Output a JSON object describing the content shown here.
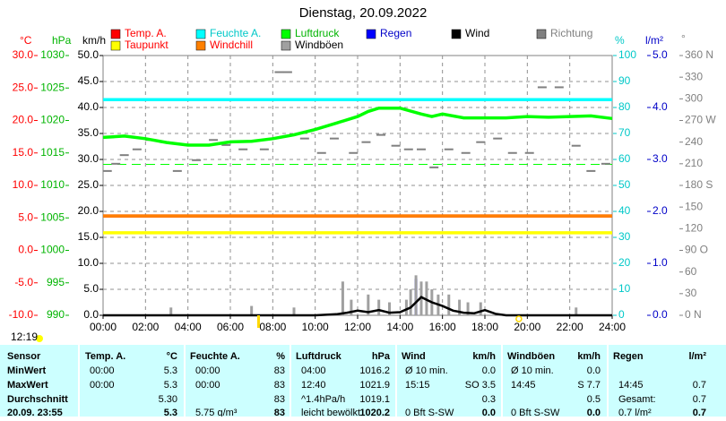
{
  "chart_data": {
    "type": "line",
    "title": "Dienstag, 20.09.2022",
    "xlim": [
      0,
      24
    ],
    "xticks": [
      {
        "value": 0,
        "label": "00:00"
      },
      {
        "value": 2,
        "label": "02:00"
      },
      {
        "value": 4,
        "label": "04:00"
      },
      {
        "value": 6,
        "label": "06:00"
      },
      {
        "value": 8,
        "label": "08:00"
      },
      {
        "value": 10,
        "label": "10:00"
      },
      {
        "value": 12,
        "label": "12:00"
      },
      {
        "value": 14,
        "label": "14:00"
      },
      {
        "value": 16,
        "label": "16:00"
      },
      {
        "value": 18,
        "label": "18:00"
      },
      {
        "value": 20,
        "label": "20:00"
      },
      {
        "value": 22,
        "label": "22:00"
      },
      {
        "value": 24,
        "label": "24:00"
      }
    ],
    "grid": true,
    "grid_axis": 2,
    "axes": [
      {
        "label": "°C",
        "color": "#ff0000",
        "lim": [
          -10,
          30
        ],
        "ticks": [
          {
            "value": -10,
            "label": "-10.0"
          },
          {
            "value": -5,
            "label": "-5.0"
          },
          {
            "value": 0,
            "label": "0.0"
          },
          {
            "value": 5,
            "label": "5.0"
          },
          {
            "value": 10,
            "label": "10.0"
          },
          {
            "value": 15,
            "label": "15.0"
          },
          {
            "value": 20,
            "label": "20.0"
          },
          {
            "value": 25,
            "label": "25.0"
          },
          {
            "value": 30,
            "label": "30.0"
          }
        ]
      },
      {
        "label": "hPa",
        "color": "#00b400",
        "lim": [
          990,
          1030
        ],
        "ticks": [
          990,
          995,
          1000,
          1005,
          1010,
          1015,
          1020,
          1025,
          1030
        ]
      },
      {
        "label": "km/h",
        "color": "#000000",
        "lim": [
          0,
          50
        ],
        "ticks": [
          {
            "value": 0,
            "label": "0.0"
          },
          {
            "value": 5,
            "label": "5.0"
          },
          {
            "value": 10,
            "label": "10.0"
          },
          {
            "value": 15,
            "label": "15.0"
          },
          {
            "value": 20,
            "label": "20.0"
          },
          {
            "value": 25,
            "label": "25.0"
          },
          {
            "value": 30,
            "label": "30.0"
          },
          {
            "value": 35,
            "label": "35.0"
          },
          {
            "value": 40,
            "label": "40.0"
          },
          {
            "value": 45,
            "label": "45.0"
          },
          {
            "value": 50,
            "label": "50.0"
          }
        ]
      },
      {
        "label": "%",
        "color": "#00c8c8",
        "lim": [
          0,
          100
        ],
        "ticks": [
          0,
          10,
          20,
          30,
          40,
          50,
          60,
          70,
          80,
          90,
          100
        ]
      },
      {
        "label": "l/m²",
        "color": "#0000c8",
        "lim": [
          0,
          5
        ],
        "ticks": [
          {
            "value": 0,
            "label": "0.0"
          },
          {
            "value": 1,
            "label": "1.0"
          },
          {
            "value": 2,
            "label": "2.0"
          },
          {
            "value": 3,
            "label": "3.0"
          },
          {
            "value": 4,
            "label": "4.0"
          },
          {
            "value": 5,
            "label": "5.0"
          }
        ]
      },
      {
        "label": "°",
        "color": "#808080",
        "lim": [
          0,
          360
        ],
        "ticks": [
          {
            "value": 0,
            "label": "0 N"
          },
          {
            "value": 30,
            "label": "30"
          },
          {
            "value": 60,
            "label": "60"
          },
          {
            "value": 90,
            "label": "90 O"
          },
          {
            "value": 120,
            "label": "120"
          },
          {
            "value": 150,
            "label": "150"
          },
          {
            "value": 180,
            "label": "180 S"
          },
          {
            "value": 210,
            "label": "210"
          },
          {
            "value": 240,
            "label": "240"
          },
          {
            "value": 270,
            "label": "270 W"
          },
          {
            "value": 300,
            "label": "300"
          },
          {
            "value": 330,
            "label": "330"
          },
          {
            "value": 360,
            "label": "360 N"
          }
        ]
      }
    ],
    "series": [
      {
        "name": "Temp. A.",
        "color": "#ff0000",
        "legend_color": "#ff0000",
        "style": "line",
        "axis": 0,
        "x": [
          0,
          24
        ],
        "values": [
          5.3,
          5.3
        ]
      },
      {
        "name": "Feuchte A.",
        "color": "#00ffff",
        "legend_color": "#00c8c8",
        "style": "line",
        "axis": 3,
        "x": [
          0,
          24
        ],
        "values": [
          83,
          83
        ]
      },
      {
        "name": "Luftdruck",
        "color": "#00ff00",
        "legend_color": "#00b400",
        "style": "line",
        "axis": 1,
        "x": [
          0,
          1,
          2,
          3,
          4,
          5,
          6,
          7,
          8,
          9,
          10,
          11,
          12,
          12.5,
          13,
          14,
          15,
          15.5,
          16,
          17,
          18,
          19,
          20,
          21,
          22,
          23,
          24
        ],
        "values": [
          1017.4,
          1017.6,
          1017.2,
          1016.6,
          1016.2,
          1016.2,
          1016.7,
          1016.8,
          1017.2,
          1017.8,
          1018.6,
          1019.6,
          1020.6,
          1021.4,
          1021.9,
          1021.9,
          1021.0,
          1020.6,
          1021.0,
          1020.4,
          1020.4,
          1020.4,
          1020.6,
          1020.5,
          1020.6,
          1020.7,
          1020.3
        ]
      },
      {
        "name": "Regen",
        "color": "#0000ff",
        "legend_color": "#0000c8",
        "style": "bar",
        "axis": 4,
        "x": [
          14.75
        ],
        "values": [
          0.7
        ]
      },
      {
        "name": "Wind",
        "color": "#000000",
        "legend_color": "#000000",
        "style": "line",
        "axis": 2,
        "x": [
          0,
          2,
          4,
          6,
          8,
          10,
          11,
          11.5,
          12,
          12.5,
          13,
          13.5,
          14,
          14.5,
          14.75,
          15,
          15.25,
          15.5,
          16,
          16.5,
          17,
          17.5,
          18,
          18.5,
          19,
          20,
          22,
          24
        ],
        "values": [
          0,
          0,
          0,
          0,
          0,
          0,
          0.2,
          0.5,
          0.9,
          0.6,
          1.0,
          0.5,
          0.6,
          1.5,
          2.5,
          3.5,
          3.0,
          2.5,
          1.8,
          0.9,
          0.5,
          0.4,
          1.0,
          0.3,
          0,
          0,
          0,
          0
        ]
      },
      {
        "name": "Richtung",
        "color": "#808080",
        "legend_color": "#808080",
        "style": "dash",
        "axis": 5,
        "x": [
          0.2,
          0.6,
          1.0,
          1.6,
          2.2,
          2.9,
          3.5,
          4.4,
          5.2,
          5.8,
          6.6,
          7.6,
          8.3,
          8.7,
          9.5,
          10.3,
          10.9,
          11.8,
          12.4,
          13.1,
          13.8,
          14.4,
          15.0,
          15.6,
          16.3,
          17.1,
          17.8,
          18.6,
          19.3,
          20.1,
          20.7,
          21.5,
          22.3,
          23.0,
          23.7
        ],
        "values": [
          200,
          210,
          222,
          230,
          243,
          240,
          200,
          215,
          243,
          236,
          230,
          230,
          337,
          337,
          245,
          225,
          245,
          225,
          240,
          250,
          235,
          230,
          230,
          205,
          230,
          225,
          240,
          245,
          225,
          225,
          316,
          316,
          235,
          200,
          210
        ]
      },
      {
        "name": "Taupunkt",
        "color": "#ffff00",
        "legend_color": "#ff0000",
        "style": "line",
        "axis": 0,
        "x": [
          0,
          24
        ],
        "values": [
          2.7,
          2.7
        ]
      },
      {
        "name": "Windchill",
        "color": "#ff8000",
        "legend_color": "#ff0000",
        "style": "line",
        "axis": 0,
        "x": [
          0,
          24
        ],
        "values": [
          5.3,
          5.3
        ]
      },
      {
        "name": "Windböen",
        "color": "#a0a0a0",
        "legend_color": "#000000",
        "style": "bar",
        "axis": 2,
        "x": [
          3.2,
          7.0,
          9.0,
          11.3,
          11.7,
          12.5,
          13.0,
          13.5,
          14.3,
          14.5,
          14.75,
          15.0,
          15.25,
          15.5,
          15.8,
          16.3,
          16.8,
          17.2,
          17.8,
          22.3
        ],
        "values": [
          1.5,
          1.8,
          1.5,
          6.5,
          3.0,
          4.0,
          3.0,
          2.5,
          3.0,
          5.0,
          7.7,
          6.5,
          6.5,
          5.0,
          4.0,
          4.0,
          3.0,
          2.5,
          2.5,
          1.5
        ]
      }
    ],
    "reference_lines": [
      {
        "axis": 1,
        "value": 1013.25,
        "color": "#00ff00"
      }
    ],
    "sunrise": 7.33,
    "sunset": 19.6,
    "time_label": "12:19"
  },
  "table": {
    "header": [
      "Sensor",
      "Temp. A.",
      "°C",
      "Feuchte A.",
      "%",
      "Luftdruck",
      "hPa",
      "Wind",
      "km/h",
      "Windböen",
      "km/h",
      "Regen",
      "l/m²"
    ],
    "rows": [
      [
        "MinWert",
        "00:00",
        "5.3",
        "00:00",
        "83",
        "04:00",
        "1016.2",
        "Ø 10 min.",
        "0.0",
        "Ø 10 min.",
        "0.0",
        null,
        null
      ],
      [
        "MaxWert",
        "00:00",
        "5.3",
        "00:00",
        "83",
        "12:40",
        "1021.9",
        "15:15",
        "SO 3.5",
        "14:45",
        "S 7.7",
        "14:45",
        "0.7"
      ],
      [
        "Durchschnitt",
        null,
        "5.30",
        null,
        "83",
        "^1.4hPa/h",
        "1019.1",
        null,
        "0.3",
        null,
        "0.5",
        "Gesamt:",
        "0.7"
      ],
      [
        "20.09. 23:55",
        null,
        "5.3",
        "5.75 g/m³",
        "83",
        "leicht bewölkt",
        "1020.2",
        "0 Bft S-SW",
        "0.0",
        "0 Bft S-SW",
        "0.0",
        "0.7 l/m²",
        "0.7"
      ]
    ]
  }
}
